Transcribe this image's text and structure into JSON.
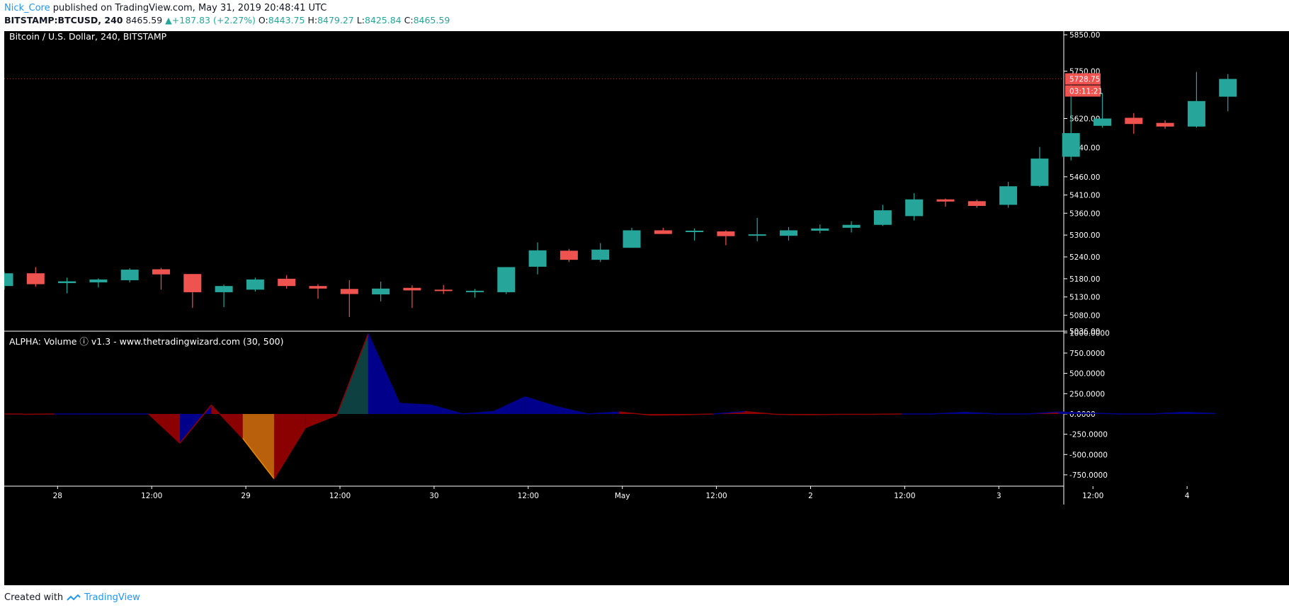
{
  "header": {
    "author": "Nick_Core",
    "published": "published on TradingView.com, May 31, 2019 20:48:41 UTC",
    "symbol": "BITSTAMP:BTCUSD, 240",
    "last": "8465.59",
    "change": "+187.83 (+2.27%)",
    "o_label": "O:",
    "o_value": "8443.75",
    "h_label": "H:",
    "h_value": "8479.27",
    "l_label": "L:",
    "l_value": "8425.84",
    "c_label": "C:",
    "c_value": "8465.59"
  },
  "footer": {
    "created_with": "Created with",
    "brand": "TradingView"
  },
  "colors": {
    "background": "#000000",
    "up": "#26a69a",
    "down": "#ef5350",
    "axis_text": "#ffffff",
    "vol_blue": "#00008b",
    "vol_red": "#8b0000",
    "vol_orange": "#b8600b",
    "vol_teal": "#0d4040"
  },
  "chart_data": [
    {
      "type": "candlestick",
      "title": "Bitcoin / U.S. Dollar, 240, BITSTAMP",
      "ylim": [
        5036,
        5860
      ],
      "y_ticks": [
        "5850.00",
        "5750.00",
        "5620.00",
        "5540.00",
        "5460.00",
        "5410.00",
        "5360.00",
        "5300.00",
        "5240.00",
        "5180.00",
        "5130.00",
        "5080.00",
        "5036.00"
      ],
      "x_ticks": [
        {
          "i": 1.7,
          "label": "28"
        },
        {
          "i": 4.7,
          "label": "12:00"
        },
        {
          "i": 7.7,
          "label": "29"
        },
        {
          "i": 10.7,
          "label": "12:00"
        },
        {
          "i": 13.7,
          "label": "30"
        },
        {
          "i": 16.7,
          "label": "12:00"
        },
        {
          "i": 19.7,
          "label": "May"
        },
        {
          "i": 22.7,
          "label": "12:00"
        },
        {
          "i": 25.7,
          "label": "2"
        },
        {
          "i": 28.7,
          "label": "12:00"
        },
        {
          "i": 31.7,
          "label": "3"
        },
        {
          "i": 34.7,
          "label": "12:00"
        },
        {
          "i": 37.7,
          "label": "4"
        }
      ],
      "last_price_label": "5728.75",
      "countdown_label": "03:11:21",
      "last_price": 5728.75,
      "candles": [
        {
          "o": 5160,
          "h": 5200,
          "l": 5150,
          "c": 5195
        },
        {
          "o": 5195,
          "h": 5212,
          "l": 5158,
          "c": 5165
        },
        {
          "o": 5168,
          "h": 5183,
          "l": 5140,
          "c": 5173
        },
        {
          "o": 5170,
          "h": 5181,
          "l": 5156,
          "c": 5178
        },
        {
          "o": 5176,
          "h": 5209,
          "l": 5170,
          "c": 5205
        },
        {
          "o": 5206,
          "h": 5210,
          "l": 5150,
          "c": 5192
        },
        {
          "o": 5193,
          "h": 5193,
          "l": 5100,
          "c": 5143
        },
        {
          "o": 5143,
          "h": 5164,
          "l": 5102,
          "c": 5160
        },
        {
          "o": 5150,
          "h": 5183,
          "l": 5145,
          "c": 5178
        },
        {
          "o": 5180,
          "h": 5190,
          "l": 5153,
          "c": 5160
        },
        {
          "o": 5160,
          "h": 5165,
          "l": 5125,
          "c": 5153
        },
        {
          "o": 5152,
          "h": 5176,
          "l": 5075,
          "c": 5138
        },
        {
          "o": 5137,
          "h": 5172,
          "l": 5118,
          "c": 5153
        },
        {
          "o": 5155,
          "h": 5162,
          "l": 5100,
          "c": 5148
        },
        {
          "o": 5150,
          "h": 5163,
          "l": 5138,
          "c": 5148
        },
        {
          "o": 5145,
          "h": 5152,
          "l": 5128,
          "c": 5147
        },
        {
          "o": 5143,
          "h": 5212,
          "l": 5138,
          "c": 5212
        },
        {
          "o": 5213,
          "h": 5280,
          "l": 5192,
          "c": 5258
        },
        {
          "o": 5257,
          "h": 5262,
          "l": 5226,
          "c": 5232
        },
        {
          "o": 5232,
          "h": 5278,
          "l": 5226,
          "c": 5260
        },
        {
          "o": 5265,
          "h": 5320,
          "l": 5265,
          "c": 5313
        },
        {
          "o": 5313,
          "h": 5320,
          "l": 5303,
          "c": 5303
        },
        {
          "o": 5310,
          "h": 5318,
          "l": 5285,
          "c": 5312
        },
        {
          "o": 5310,
          "h": 5313,
          "l": 5272,
          "c": 5297
        },
        {
          "o": 5298,
          "h": 5347,
          "l": 5283,
          "c": 5302
        },
        {
          "o": 5298,
          "h": 5322,
          "l": 5285,
          "c": 5313
        },
        {
          "o": 5312,
          "h": 5329,
          "l": 5305,
          "c": 5318
        },
        {
          "o": 5320,
          "h": 5338,
          "l": 5307,
          "c": 5328
        },
        {
          "o": 5328,
          "h": 5383,
          "l": 5325,
          "c": 5368
        },
        {
          "o": 5352,
          "h": 5415,
          "l": 5340,
          "c": 5398
        },
        {
          "o": 5398,
          "h": 5400,
          "l": 5378,
          "c": 5392
        },
        {
          "o": 5393,
          "h": 5397,
          "l": 5375,
          "c": 5380
        },
        {
          "o": 5383,
          "h": 5446,
          "l": 5375,
          "c": 5434
        },
        {
          "o": 5435,
          "h": 5542,
          "l": 5432,
          "c": 5510
        },
        {
          "o": 5515,
          "h": 5712,
          "l": 5505,
          "c": 5580
        },
        {
          "o": 5600,
          "h": 5690,
          "l": 5595,
          "c": 5620
        },
        {
          "o": 5622,
          "h": 5635,
          "l": 5578,
          "c": 5605
        },
        {
          "o": 5608,
          "h": 5615,
          "l": 5592,
          "c": 5598
        },
        {
          "o": 5598,
          "h": 5748,
          "l": 5595,
          "c": 5668
        },
        {
          "o": 5680,
          "h": 5742,
          "l": 5640,
          "c": 5728.75
        }
      ]
    },
    {
      "type": "area",
      "title": "ALPHA: Volume ⓘ v1.3 - www.thetradingwizard.com (30, 500)",
      "ylim": [
        -890,
        1020
      ],
      "y_ticks": [
        "1000.0000",
        "750.0000",
        "500.0000",
        "250.0000",
        "0.0000",
        "-250.0000",
        "-500.0000",
        "-750.0000"
      ],
      "values": [
        -5,
        0,
        0,
        0,
        0,
        -360,
        110,
        -300,
        -800,
        -170,
        -15,
        990,
        130,
        110,
        0,
        30,
        210,
        90,
        0,
        25,
        -15,
        -10,
        0,
        30,
        -5,
        -10,
        -5,
        -5,
        0,
        0,
        20,
        0,
        0,
        25,
        10,
        0,
        0,
        20,
        5
      ],
      "segment_colors": [
        "neutral",
        "neutral",
        "neutral",
        "neutral",
        "red",
        "blue",
        "red",
        "orange",
        "red",
        "red",
        "teal",
        "blue",
        "blue",
        "blue",
        "blue",
        "blue",
        "blue",
        "blue",
        "blue",
        "red",
        "red",
        "red",
        "red",
        "red",
        "red",
        "red",
        "blue",
        "blue",
        "blue",
        "blue",
        "blue",
        "blue",
        "red",
        "blue",
        "blue",
        "blue",
        "blue",
        "blue"
      ]
    }
  ]
}
